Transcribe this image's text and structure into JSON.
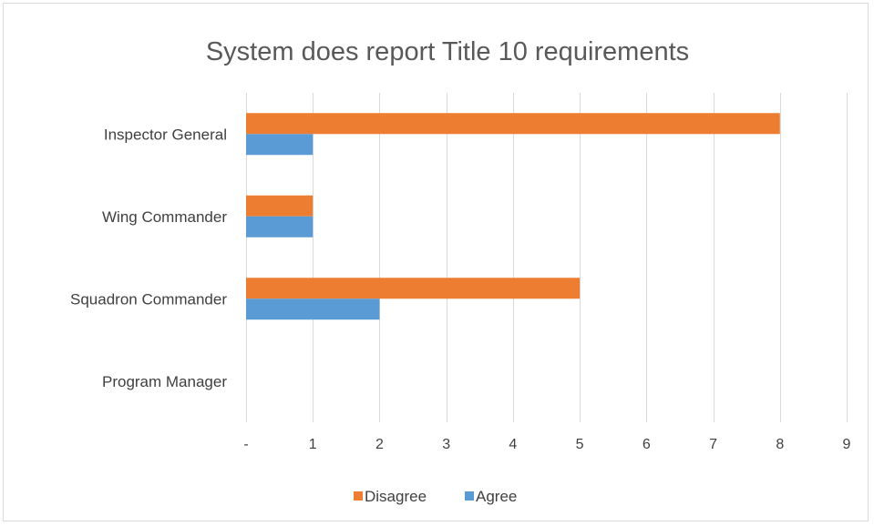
{
  "chart_data": {
    "type": "bar",
    "orientation": "horizontal",
    "title": "System does report Title 10 requirements",
    "categories": [
      "Inspector General",
      "Wing Commander",
      "Squadron Commander",
      "Program Manager"
    ],
    "series": [
      {
        "name": "Disagree",
        "color": "#ED7D31",
        "values": [
          8,
          1,
          5,
          0
        ]
      },
      {
        "name": "Agree",
        "color": "#5B9BD5",
        "values": [
          1,
          1,
          2,
          0
        ]
      }
    ],
    "xlim": [
      0,
      9
    ],
    "xticks": [
      "-",
      "1",
      "2",
      "3",
      "4",
      "5",
      "6",
      "7",
      "8",
      "9"
    ],
    "grid": "vertical",
    "legend_position": "bottom"
  }
}
